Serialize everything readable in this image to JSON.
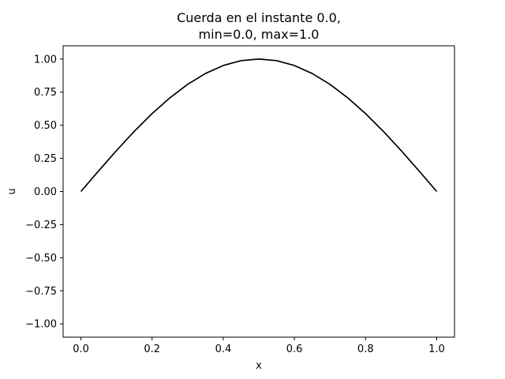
{
  "chart_data": {
    "type": "line",
    "title_lines": [
      "Cuerda en el instante 0.0,",
      "min=0.0, max=1.0"
    ],
    "xlabel": "x",
    "ylabel": "u",
    "xlim": [
      -0.05,
      1.05
    ],
    "ylim": [
      -1.1,
      1.1
    ],
    "xticks": [
      0.0,
      0.2,
      0.4,
      0.6,
      0.8,
      1.0
    ],
    "xtick_labels": [
      "0.0",
      "0.2",
      "0.4",
      "0.6",
      "0.8",
      "1.0"
    ],
    "yticks": [
      -1.0,
      -0.75,
      -0.5,
      -0.25,
      0.0,
      0.25,
      0.5,
      0.75,
      1.0
    ],
    "ytick_labels": [
      "−1.00",
      "−0.75",
      "−0.50",
      "−0.25",
      "0.00",
      "0.25",
      "0.50",
      "0.75",
      "1.00"
    ],
    "grid": false,
    "series": [
      {
        "color": "#000000",
        "x": [
          0.0,
          0.05,
          0.1,
          0.15,
          0.2,
          0.25,
          0.3,
          0.35,
          0.4,
          0.45,
          0.5,
          0.55,
          0.6,
          0.65,
          0.7,
          0.75,
          0.8,
          0.85,
          0.9,
          0.95,
          1.0
        ],
        "y": [
          0.0,
          0.156,
          0.309,
          0.454,
          0.588,
          0.707,
          0.809,
          0.891,
          0.951,
          0.988,
          1.0,
          0.988,
          0.951,
          0.891,
          0.809,
          0.707,
          0.588,
          0.454,
          0.309,
          0.156,
          0.0
        ]
      }
    ]
  }
}
